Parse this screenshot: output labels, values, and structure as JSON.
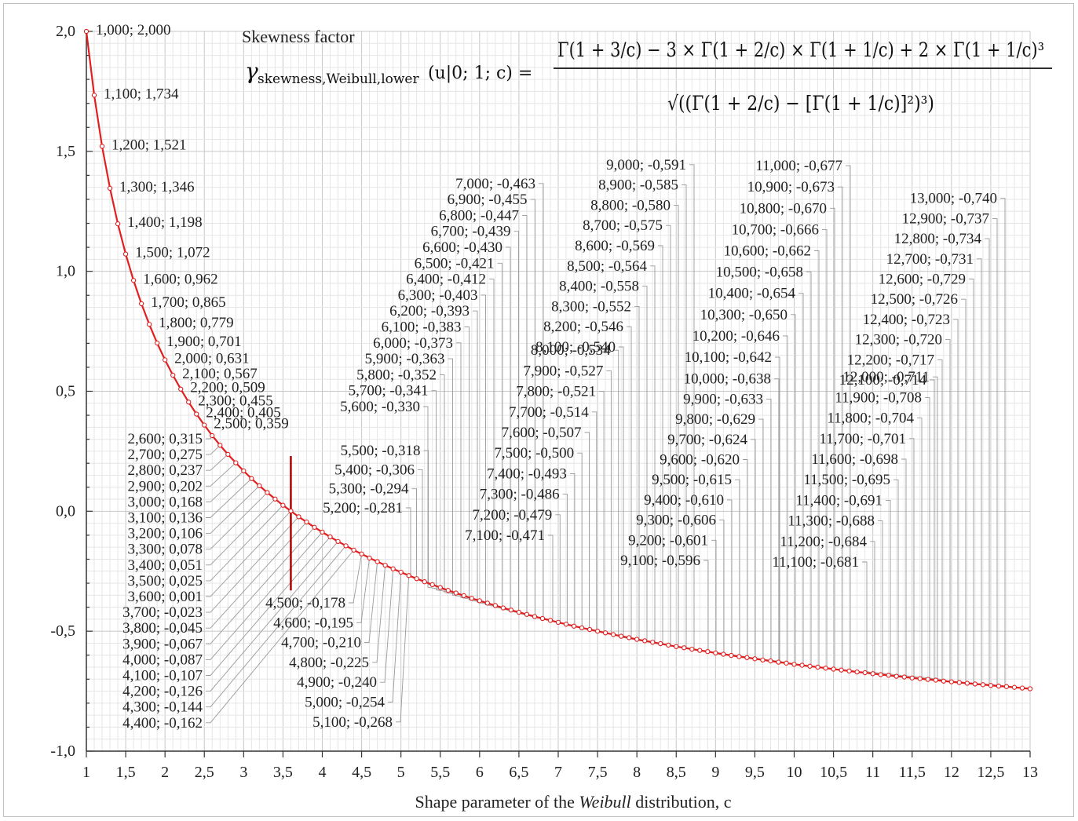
{
  "chart_data": {
    "type": "line",
    "title": "Skewness factor",
    "formula": {
      "lhs_symbol": "γ",
      "lhs_subscript": "skewness,Weibull,lower",
      "lhs_args": "(u|0; 1; c) =",
      "numerator": "Γ(1 + 3/c) − 3 × Γ(1 + 2/c) × Γ(1 + 1/c) + 2 × Γ(1 + 1/c)³",
      "denominator": "√((Γ(1 + 2/c) − [Γ(1 + 1/c)]²)³)"
    },
    "xlabel_parts": [
      "Shape parameter  of the ",
      "Weibull",
      " distribution, c"
    ],
    "xlim": [
      1,
      13
    ],
    "ylim": [
      -1.0,
      2.0
    ],
    "x_ticks": [
      "1",
      "1,5",
      "2",
      "2,5",
      "3",
      "3,5",
      "4",
      "4,5",
      "5",
      "5,5",
      "6",
      "6,5",
      "7",
      "7,5",
      "8",
      "8,5",
      "9",
      "9,5",
      "10",
      "10,5",
      "11",
      "11,5",
      "12",
      "12,5",
      "13"
    ],
    "y_ticks": [
      "2,0",
      "1,5",
      "1,0",
      "0,5",
      "0,0",
      "-0,5",
      "-1,0"
    ],
    "grid": true,
    "line_color": "#e02020",
    "marker_color": "#e02020",
    "zero_marker_color": "#b00000",
    "highlight_label_color": "#e02020",
    "highlight_index": 26,
    "x": [
      1.0,
      1.1,
      1.2,
      1.3,
      1.4,
      1.5,
      1.6,
      1.7,
      1.8,
      1.9,
      2.0,
      2.1,
      2.2,
      2.3,
      2.4,
      2.5,
      2.6,
      2.7,
      2.8,
      2.9,
      3.0,
      3.1,
      3.2,
      3.3,
      3.4,
      3.5,
      3.6,
      3.7,
      3.8,
      3.9,
      4.0,
      4.1,
      4.2,
      4.3,
      4.4,
      4.5,
      4.6,
      4.7,
      4.8,
      4.9,
      5.0,
      5.1,
      5.2,
      5.3,
      5.4,
      5.5,
      5.6,
      5.7,
      5.8,
      5.9,
      6.0,
      6.1,
      6.2,
      6.3,
      6.4,
      6.5,
      6.6,
      6.7,
      6.8,
      6.9,
      7.0,
      7.1,
      7.2,
      7.3,
      7.4,
      7.5,
      7.6,
      7.7,
      7.8,
      7.9,
      8.0,
      8.1,
      8.2,
      8.3,
      8.4,
      8.5,
      8.6,
      8.7,
      8.8,
      8.9,
      9.0,
      9.1,
      9.2,
      9.3,
      9.4,
      9.5,
      9.6,
      9.7,
      9.8,
      9.9,
      10.0,
      10.1,
      10.2,
      10.3,
      10.4,
      10.5,
      10.6,
      10.7,
      10.8,
      10.9,
      11.0,
      11.1,
      11.2,
      11.3,
      11.4,
      11.5,
      11.6,
      11.7,
      11.8,
      11.9,
      12.0,
      12.1,
      12.2,
      12.3,
      12.4,
      12.5,
      12.6,
      12.7,
      12.8,
      12.9,
      13.0
    ],
    "y": [
      2.0,
      1.734,
      1.521,
      1.346,
      1.198,
      1.072,
      0.962,
      0.865,
      0.779,
      0.701,
      0.631,
      0.567,
      0.509,
      0.455,
      0.405,
      0.359,
      0.315,
      0.275,
      0.237,
      0.202,
      0.168,
      0.136,
      0.106,
      0.078,
      0.051,
      0.025,
      0.001,
      -0.023,
      -0.045,
      -0.067,
      -0.087,
      -0.107,
      -0.126,
      -0.144,
      -0.162,
      -0.178,
      -0.195,
      -0.21,
      -0.225,
      -0.24,
      -0.254,
      -0.268,
      -0.281,
      -0.294,
      -0.306,
      -0.318,
      -0.33,
      -0.341,
      -0.352,
      -0.363,
      -0.373,
      -0.383,
      -0.393,
      -0.403,
      -0.412,
      -0.421,
      -0.43,
      -0.439,
      -0.447,
      -0.455,
      -0.463,
      -0.471,
      -0.479,
      -0.486,
      -0.493,
      -0.5,
      -0.507,
      -0.514,
      -0.521,
      -0.527,
      -0.534,
      -0.54,
      -0.546,
      -0.552,
      -0.558,
      -0.564,
      -0.569,
      -0.575,
      -0.58,
      -0.585,
      -0.591,
      -0.596,
      -0.601,
      -0.606,
      -0.61,
      -0.615,
      -0.62,
      -0.624,
      -0.629,
      -0.633,
      -0.638,
      -0.642,
      -0.646,
      -0.65,
      -0.654,
      -0.658,
      -0.662,
      -0.666,
      -0.67,
      -0.673,
      -0.677,
      -0.681,
      -0.684,
      -0.688,
      -0.691,
      -0.695,
      -0.698,
      -0.701,
      -0.704,
      -0.708,
      -0.711,
      -0.714,
      -0.717,
      -0.72,
      -0.723,
      -0.726,
      -0.729,
      -0.731,
      -0.734,
      -0.737,
      -0.74
    ],
    "labels": [
      "1,000; 2,000",
      "1,100; 1,734",
      "1,200; 1,521",
      "1,300; 1,346",
      "1,400; 1,198",
      "1,500; 1,072",
      "1,600; 0,962",
      "1,700; 0,865",
      "1,800; 0,779",
      "1,900; 0,701",
      "2,000; 0,631",
      "2,100; 0,567",
      "2,200; 0,509",
      "2,300; 0,455",
      "2,400; 0,405",
      "2,500; 0,359",
      "2,600; 0,315",
      "2,700; 0,275",
      "2,800; 0,237",
      "2,900; 0,202",
      "3,000; 0,168",
      "3,100; 0,136",
      "3,200; 0,106",
      "3,300; 0,078",
      "3,400; 0,051",
      "3,500; 0,025",
      "3,600; 0,001",
      "3,700; -0,023",
      "3,800; -0,045",
      "3,900; -0,067",
      "4,000; -0,087",
      "4,100; -0,107",
      "4,200; -0,126",
      "4,300; -0,144",
      "4,400; -0,162",
      "4,500; -0,178",
      "4,600; -0,195",
      "4,700; -0,210",
      "4,800; -0,225",
      "4,900; -0,240",
      "5,000; -0,254",
      "5,100; -0,268",
      "5,200; -0,281",
      "5,300; -0,294",
      "5,400; -0,306",
      "5,500; -0,318",
      "5,600; -0,330",
      "5,700; -0,341",
      "5,800; -0,352",
      "5,900; -0,363",
      "6,000; -0,373",
      "6,100; -0,383",
      "6,200; -0,393",
      "6,300; -0,403",
      "6,400; -0,412",
      "6,500; -0,421",
      "6,600; -0,430",
      "6,700; -0,439",
      "6,800; -0,447",
      "6,900; -0,455",
      "7,000; -0,463",
      "7,100; -0,471",
      "7,200; -0,479",
      "7,300; -0,486",
      "7,400; -0,493",
      "7,500; -0,500",
      "7,600; -0,507",
      "7,700; -0,514",
      "7,800; -0,521",
      "7,900; -0,527",
      "8,000; -0,534",
      "8,100; -0,540",
      "8,200; -0,546",
      "8,300; -0,552",
      "8,400; -0,558",
      "8,500; -0,564",
      "8,600; -0,569",
      "8,700; -0,575",
      "8,800; -0,580",
      "8,900; -0,585",
      "9,000; -0,591",
      "9,100; -0,596",
      "9,200; -0,601",
      "9,300; -0,606",
      "9,400; -0,610",
      "9,500; -0,615",
      "9,600; -0,620",
      "9,700; -0,624",
      "9,800; -0,629",
      "9,900; -0,633",
      "10,000; -0,638",
      "10,100; -0,642",
      "10,200; -0,646",
      "10,300; -0,650",
      "10,400; -0,654",
      "10,500; -0,658",
      "10,600; -0,662",
      "10,700; -0,666",
      "10,800; -0,670",
      "10,900; -0,673",
      "11,000; -0,677",
      "11,100; -0,681",
      "11,200; -0,684",
      "11,300; -0,688",
      "11,400; -0,691",
      "11,500; -0,695",
      "11,600; -0,698",
      "11,700; -0,701",
      "11,800; -0,704",
      "11,900; -0,708",
      "12,000; -0,711",
      "12,100; -0,714",
      "12,200; -0,717",
      "12,300; -0,720",
      "12,400; -0,723",
      "12,500; -0,726",
      "12,600; -0,729",
      "12,700; -0,731",
      "12,800; -0,734",
      "12,900; -0,737",
      "13,000; -0,740"
    ]
  }
}
